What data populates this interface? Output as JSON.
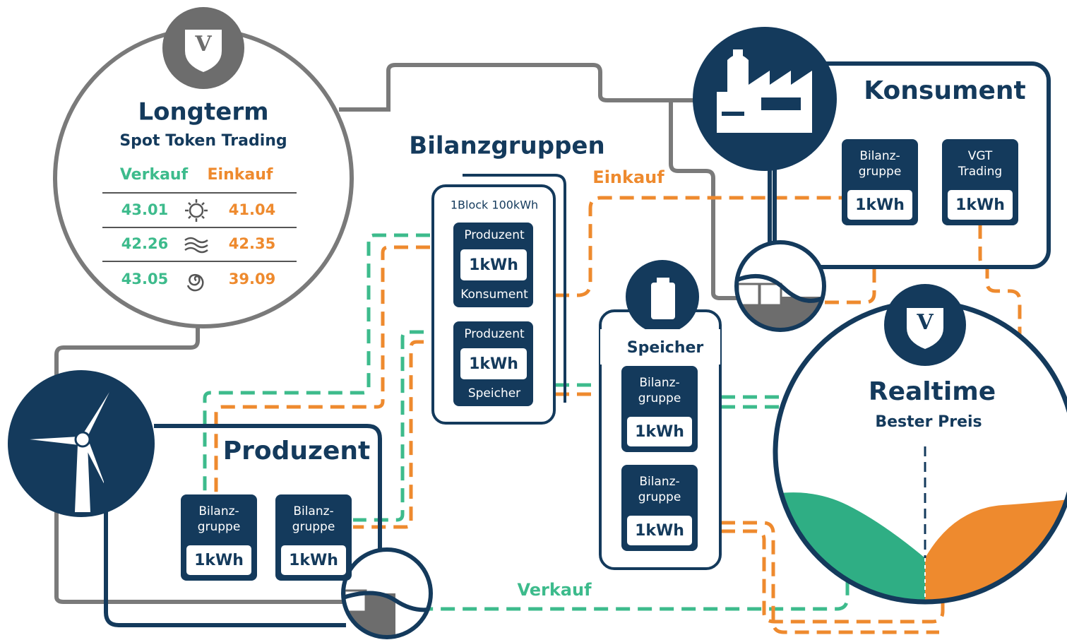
{
  "longterm": {
    "title": "Longterm",
    "subtitle": "Spot Token Trading",
    "sell_label": "Verkauf",
    "buy_label": "Einkauf",
    "rows": [
      {
        "sell": "43.01",
        "buy": "41.04"
      },
      {
        "sell": "42.26",
        "buy": "42.35"
      },
      {
        "sell": "43.05",
        "buy": "39.09"
      }
    ]
  },
  "bilanzgruppen": {
    "title": "Bilanzgruppen",
    "block_label": "1Block 100kWh",
    "blocks": [
      {
        "top": "Produzent",
        "amount": "1kWh",
        "bottom": "Konsument"
      },
      {
        "top": "Produzent",
        "amount": "1kWh",
        "bottom": "Speicher"
      }
    ]
  },
  "flow_labels": {
    "buy": "Einkauf",
    "sell": "Verkauf"
  },
  "konsument": {
    "title": "Konsument",
    "boxes": [
      {
        "lines": [
          "Bilanz-",
          "gruppe"
        ],
        "amount": "1kWh"
      },
      {
        "lines": [
          "VGT",
          "Trading"
        ],
        "amount": "1kWh"
      }
    ]
  },
  "speicher": {
    "title": "Speicher",
    "boxes": [
      {
        "lines": [
          "Bilanz-",
          "gruppe"
        ],
        "amount": "1kWh"
      },
      {
        "lines": [
          "Bilanz-",
          "gruppe"
        ],
        "amount": "1kWh"
      }
    ]
  },
  "realtime": {
    "title": "Realtime",
    "subtitle": "Bester Preis"
  },
  "produzent": {
    "title": "Produzent",
    "boxes": [
      {
        "lines": [
          "Bilanz-",
          "gruppe"
        ],
        "amount": "1kWh"
      },
      {
        "lines": [
          "Bilanz-",
          "gruppe"
        ],
        "amount": "1kWh"
      }
    ]
  }
}
